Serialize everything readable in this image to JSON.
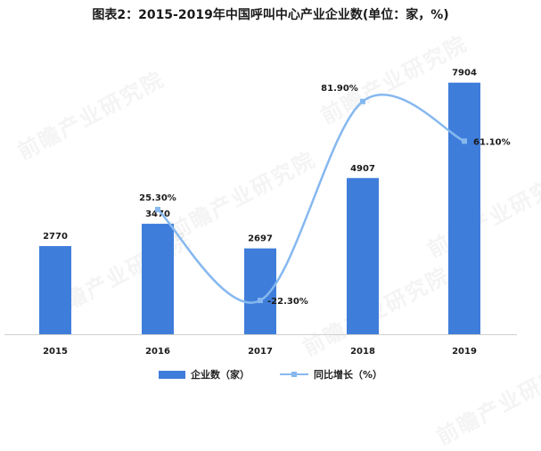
{
  "title": "图表2：2015-2019年中国呼叫中心产业企业数(单位：家，%)",
  "watermark": "前瞻产业研究院",
  "colors": {
    "bar": "#3f7ddb",
    "line": "#86b8ef",
    "marker": "#86b8ef",
    "axis": "#cfcfcf",
    "text": "#1a1a1a"
  },
  "legend": {
    "bar_label": "企业数（家）",
    "line_label": "同比增长（%）"
  },
  "chart_data": {
    "type": "bar",
    "title": "图表2：2015-2019年中国呼叫中心产业企业数(单位：家，%)",
    "categories": [
      "2015",
      "2016",
      "2017",
      "2018",
      "2019"
    ],
    "series": [
      {
        "name": "企业数（家）",
        "type": "bar",
        "values": [
          2770,
          3470,
          2697,
          4907,
          7904
        ],
        "labels": [
          "2770",
          "3470",
          "2697",
          "4907",
          "7904"
        ]
      },
      {
        "name": "同比增长（%）",
        "type": "line",
        "smooth": true,
        "secondary_axis": true,
        "values": [
          null,
          25.3,
          -22.3,
          81.9,
          61.1
        ],
        "labels": [
          "",
          "25.30%",
          "-22.30%",
          "81.90%",
          "61.10%"
        ]
      }
    ],
    "ylim": [
      0,
      8400
    ],
    "y2lim": [
      -40,
      100
    ],
    "legend_position": "bottom",
    "grid": false
  }
}
